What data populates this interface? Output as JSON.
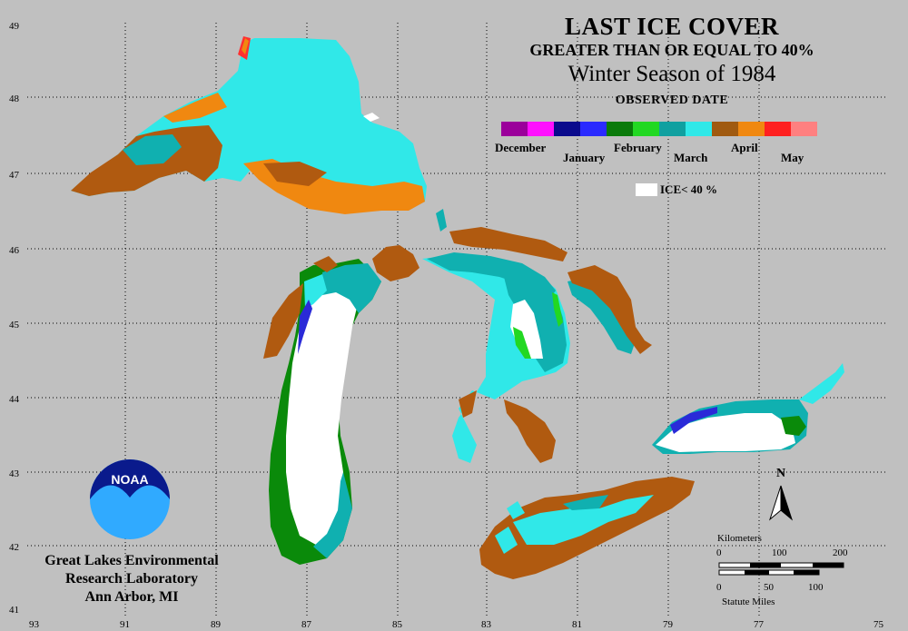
{
  "title": {
    "line1": "LAST ICE COVER",
    "line2": "GREATER THAN OR EQUAL TO 40%",
    "line3": "Winter Season of 1984",
    "legend_heading": "OBSERVED DATE"
  },
  "legend": {
    "months": [
      "December",
      "January",
      "February",
      "March",
      "April",
      "May"
    ],
    "colors": [
      "#9b009b",
      "#ff10ff",
      "#0a0a8c",
      "#2a2aff",
      "#0a7a0a",
      "#22d822",
      "#10a0a0",
      "#30e8e8",
      "#a05a10",
      "#f08810",
      "#ff2020",
      "#ff8080"
    ],
    "ice_label": "ICE< 40 %"
  },
  "lake_colors": {
    "ice_lt_40": "#ffffff",
    "early_march": "#10b0b0",
    "late_march": "#30e8e8",
    "early_april": "#b05a10",
    "late_april": "#f08810",
    "february": "#0a8a0a",
    "february_late": "#22d822",
    "january": "#2a2ad8",
    "may": "#ff3030"
  },
  "axes": {
    "latitudes": [
      "49",
      "48",
      "47",
      "46",
      "45",
      "44",
      "43",
      "42",
      "41"
    ],
    "longitudes": [
      "93",
      "91",
      "89",
      "87",
      "85",
      "83",
      "81",
      "79",
      "77",
      "75"
    ]
  },
  "logo": {
    "text": "NOAA"
  },
  "organization": {
    "line1": "Great Lakes Environmental",
    "line2": "Research Laboratory",
    "line3": "Ann Arbor, MI"
  },
  "north_arrow": {
    "label": "N"
  },
  "scale_bar": {
    "km_title": "Kilometers",
    "km_ticks": [
      "0",
      "100",
      "200"
    ],
    "mi_ticks": [
      "0",
      "50",
      "100"
    ],
    "mi_title": "Statute Miles"
  }
}
